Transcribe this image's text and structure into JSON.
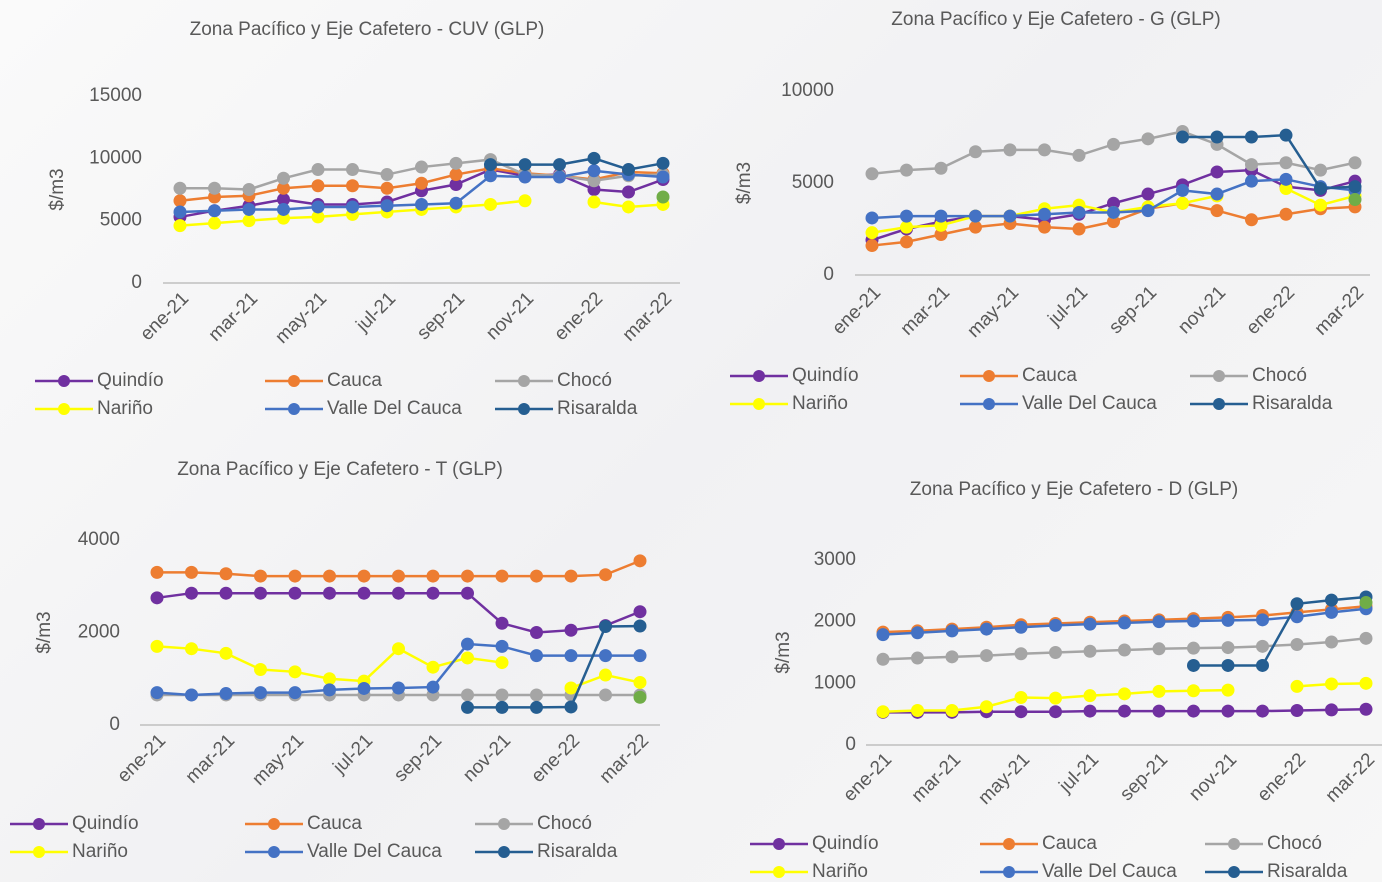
{
  "chart_data": [
    {
      "type": "line",
      "title": "Zona Pacífico y Eje Cafetero - CUV (GLP)",
      "y_label": "$/m3",
      "categories": [
        "ene-21",
        null,
        "mar-21",
        null,
        "may-21",
        null,
        "jul-21",
        null,
        "sep-21",
        null,
        "nov-21",
        null,
        "ene-22",
        null,
        "mar-22"
      ],
      "ylim": [
        0,
        15000
      ],
      "yticks": [
        0,
        5000,
        10000,
        15000
      ],
      "series": [
        {
          "name": "Quindío",
          "color": "#7030a0",
          "values": [
            5300,
            5800,
            6200,
            6700,
            6300,
            6300,
            6500,
            7400,
            7900,
            9100,
            8600,
            8700,
            7500,
            7300,
            8300
          ]
        },
        {
          "name": "Cauca",
          "color": "#ed7d31",
          "values": [
            6600,
            6900,
            7000,
            7600,
            7800,
            7800,
            7600,
            8000,
            8700,
            9200,
            8800,
            8600,
            8300,
            8900,
            8800
          ]
        },
        {
          "name": "Chocó",
          "color": "#a5a5a5",
          "values": [
            7600,
            7600,
            7500,
            8400,
            9100,
            9100,
            8700,
            9300,
            9600,
            9900,
            8700,
            8600,
            8200,
            8600,
            8700
          ]
        },
        {
          "name": "Nariño",
          "color": "#ffff00",
          "values": [
            4600,
            4800,
            5000,
            5200,
            5300,
            5500,
            5700,
            5900,
            6100,
            6300,
            6600,
            null,
            6500,
            6100,
            6300
          ]
        },
        {
          "name": "Valle Del Cauca",
          "color": "#4472c4",
          "values": [
            5700,
            5800,
            5900,
            5900,
            6100,
            6100,
            6200,
            6300,
            6400,
            8600,
            8500,
            8500,
            9000,
            8700,
            8500
          ]
        },
        {
          "name": "Risaralda",
          "color": "#255e91",
          "values": [
            null,
            null,
            null,
            null,
            null,
            null,
            null,
            null,
            null,
            9500,
            9500,
            9500,
            10000,
            9100,
            9600
          ]
        },
        {
          "color": "#70ad47",
          "values": [
            null,
            null,
            null,
            null,
            null,
            null,
            null,
            null,
            null,
            null,
            null,
            null,
            null,
            null,
            6900
          ]
        }
      ]
    },
    {
      "type": "line",
      "title": "Zona Pacífico y Eje Cafetero - G (GLP)",
      "y_label": "$/m3",
      "categories": [
        "ene-21",
        null,
        "mar-21",
        null,
        "may-21",
        null,
        "jul-21",
        null,
        "sep-21",
        null,
        "nov-21",
        null,
        "ene-22",
        null,
        "mar-22"
      ],
      "ylim": [
        0,
        10000
      ],
      "yticks": [
        0,
        5000,
        10000
      ],
      "series": [
        {
          "name": "Quindío",
          "color": "#7030a0",
          "values": [
            1900,
            2500,
            2900,
            3200,
            3200,
            3000,
            3300,
            3900,
            4400,
            4900,
            5600,
            5700,
            4800,
            4600,
            5100
          ]
        },
        {
          "name": "Cauca",
          "color": "#ed7d31",
          "values": [
            1600,
            1800,
            2200,
            2600,
            2800,
            2600,
            2500,
            2900,
            3600,
            3900,
            3500,
            3000,
            3300,
            3600,
            3700
          ]
        },
        {
          "name": "Chocó",
          "color": "#a5a5a5",
          "values": [
            5500,
            5700,
            5800,
            6700,
            6800,
            6800,
            6500,
            7100,
            7400,
            7800,
            7100,
            6000,
            6100,
            5700,
            6100
          ]
        },
        {
          "name": "Nariño",
          "color": "#ffff00",
          "values": [
            2300,
            2600,
            2700,
            3200,
            3200,
            3600,
            3800,
            3400,
            3700,
            3900,
            4300,
            null,
            4700,
            3800,
            4300
          ]
        },
        {
          "name": "Valle Del Cauca",
          "color": "#4472c4",
          "values": [
            3100,
            3200,
            3200,
            3200,
            3200,
            3300,
            3400,
            3400,
            3500,
            4600,
            4400,
            5100,
            5200,
            4800,
            4600
          ]
        },
        {
          "name": "Risaralda",
          "color": "#255e91",
          "values": [
            null,
            null,
            null,
            null,
            null,
            null,
            null,
            null,
            null,
            7500,
            7500,
            7500,
            7600,
            4700,
            4800
          ]
        },
        {
          "color": "#70ad47",
          "values": [
            null,
            null,
            null,
            null,
            null,
            null,
            null,
            null,
            null,
            null,
            null,
            null,
            null,
            null,
            4100
          ]
        }
      ]
    },
    {
      "type": "line",
      "title": "Zona Pacífico y Eje Cafetero - T (GLP)",
      "y_label": "$/m3",
      "categories": [
        "ene-21",
        null,
        "mar-21",
        null,
        "may-21",
        null,
        "jul-21",
        null,
        "sep-21",
        null,
        "nov-21",
        null,
        "ene-22",
        null,
        "mar-22"
      ],
      "ylim": [
        0,
        4000
      ],
      "yticks": [
        0,
        2000,
        4000
      ],
      "series": [
        {
          "name": "Quindío",
          "color": "#7030a0",
          "values": [
            2750,
            2850,
            2850,
            2850,
            2850,
            2850,
            2850,
            2850,
            2850,
            2850,
            2200,
            2000,
            2050,
            2150,
            2450
          ]
        },
        {
          "name": "Cauca",
          "color": "#ed7d31",
          "values": [
            3300,
            3300,
            3270,
            3220,
            3220,
            3220,
            3220,
            3220,
            3220,
            3220,
            3220,
            3220,
            3220,
            3250,
            3550
          ]
        },
        {
          "name": "Chocó",
          "color": "#a5a5a5",
          "values": [
            650,
            650,
            650,
            650,
            650,
            650,
            650,
            650,
            650,
            650,
            650,
            650,
            650,
            650,
            650
          ]
        },
        {
          "name": "Nariño",
          "color": "#ffff00",
          "values": [
            1700,
            1650,
            1550,
            1200,
            1150,
            1000,
            950,
            1650,
            1250,
            1450,
            1350,
            null,
            800,
            1080,
            920
          ]
        },
        {
          "name": "Valle Del Cauca",
          "color": "#4472c4",
          "values": [
            700,
            650,
            680,
            700,
            700,
            760,
            790,
            800,
            820,
            1750,
            1700,
            1500,
            1500,
            1500,
            1500
          ]
        },
        {
          "name": "Risaralda",
          "color": "#255e91",
          "values": [
            null,
            null,
            null,
            null,
            null,
            null,
            null,
            null,
            null,
            380,
            380,
            380,
            390,
            2130,
            2140
          ]
        },
        {
          "color": "#70ad47",
          "values": [
            null,
            null,
            null,
            null,
            null,
            null,
            null,
            null,
            null,
            null,
            null,
            null,
            null,
            null,
            600
          ]
        }
      ]
    },
    {
      "type": "line",
      "title": "Zona Pacífico y Eje Cafetero - D (GLP)",
      "y_label": "$/m3",
      "categories": [
        "ene-21",
        null,
        "mar-21",
        null,
        "may-21",
        null,
        "jul-21",
        null,
        "sep-21",
        null,
        "nov-21",
        null,
        "ene-22",
        null,
        "mar-22"
      ],
      "ylim": [
        0,
        3000
      ],
      "yticks": [
        0,
        1000,
        2000,
        3000
      ],
      "series": [
        {
          "name": "Quindío",
          "color": "#7030a0",
          "values": [
            530,
            530,
            530,
            540,
            540,
            540,
            550,
            550,
            550,
            550,
            550,
            550,
            560,
            570,
            580
          ]
        },
        {
          "name": "Cauca",
          "color": "#ed7d31",
          "values": [
            1830,
            1850,
            1880,
            1910,
            1950,
            1970,
            1990,
            2010,
            2030,
            2050,
            2070,
            2100,
            2150,
            2200,
            2250
          ]
        },
        {
          "name": "Chocó",
          "color": "#a5a5a5",
          "values": [
            1390,
            1410,
            1430,
            1450,
            1480,
            1500,
            1520,
            1540,
            1560,
            1570,
            1580,
            1600,
            1630,
            1670,
            1730
          ]
        },
        {
          "name": "Nariño",
          "color": "#ffff00",
          "values": [
            540,
            560,
            560,
            620,
            770,
            760,
            800,
            830,
            870,
            880,
            890,
            null,
            950,
            990,
            1000
          ]
        },
        {
          "name": "Valle Del Cauca",
          "color": "#4472c4",
          "values": [
            1790,
            1820,
            1850,
            1880,
            1910,
            1940,
            1960,
            1980,
            2000,
            2010,
            2020,
            2030,
            2080,
            2150,
            2210
          ]
        },
        {
          "name": "Risaralda",
          "color": "#255e91",
          "values": [
            null,
            null,
            null,
            null,
            null,
            null,
            null,
            null,
            null,
            1290,
            1290,
            1290,
            2290,
            2350,
            2400
          ]
        },
        {
          "color": "#70ad47",
          "values": [
            null,
            null,
            null,
            null,
            null,
            null,
            null,
            null,
            null,
            null,
            null,
            null,
            null,
            null,
            2310
          ]
        }
      ]
    }
  ]
}
